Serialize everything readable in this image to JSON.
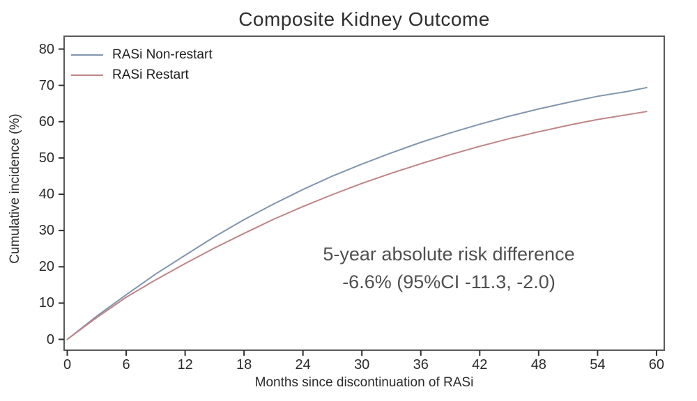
{
  "chart_data": {
    "type": "line",
    "title": "Composite Kidney Outcome",
    "xlabel": "Months since discontinuation of RASi",
    "ylabel": "Cumulative incidence (%)",
    "xlim": [
      0,
      61
    ],
    "ylim": [
      0,
      80
    ],
    "x_ticks": [
      0,
      6,
      12,
      18,
      24,
      30,
      36,
      42,
      48,
      54,
      60
    ],
    "y_ticks": [
      0,
      10,
      20,
      30,
      40,
      50,
      60,
      70,
      80
    ],
    "grid": false,
    "legend_position": "top-left-inside",
    "x": [
      0,
      3,
      6,
      9,
      12,
      15,
      18,
      21,
      24,
      27,
      30,
      33,
      36,
      39,
      42,
      45,
      48,
      51,
      54,
      57,
      59
    ],
    "series": [
      {
        "name": "RASi Non-restart",
        "color": "#8195ae",
        "values": [
          0,
          6.4,
          12.3,
          18.0,
          23.2,
          28.3,
          33.0,
          37.3,
          41.3,
          45.0,
          48.3,
          51.4,
          54.3,
          56.9,
          59.3,
          61.5,
          63.5,
          65.3,
          67.0,
          68.3,
          69.4
        ]
      },
      {
        "name": "RASi Restart",
        "color": "#c08487",
        "values": [
          0,
          6.0,
          11.6,
          16.4,
          20.9,
          25.2,
          29.2,
          33.1,
          36.6,
          39.9,
          43.0,
          45.8,
          48.4,
          50.9,
          53.2,
          55.3,
          57.2,
          59.0,
          60.6,
          61.9,
          62.8
        ]
      }
    ],
    "annotation": {
      "line1": "5-year absolute risk difference",
      "line2": "-6.6% (95%CI -11.3, -2.0)"
    }
  },
  "colors": {
    "plot_border": "#5a5a5a",
    "tick": "#2f2f2f",
    "non_restart_line": "#8195ae",
    "restart_line": "#c08487",
    "annotation_text": "#4f4f4f"
  }
}
